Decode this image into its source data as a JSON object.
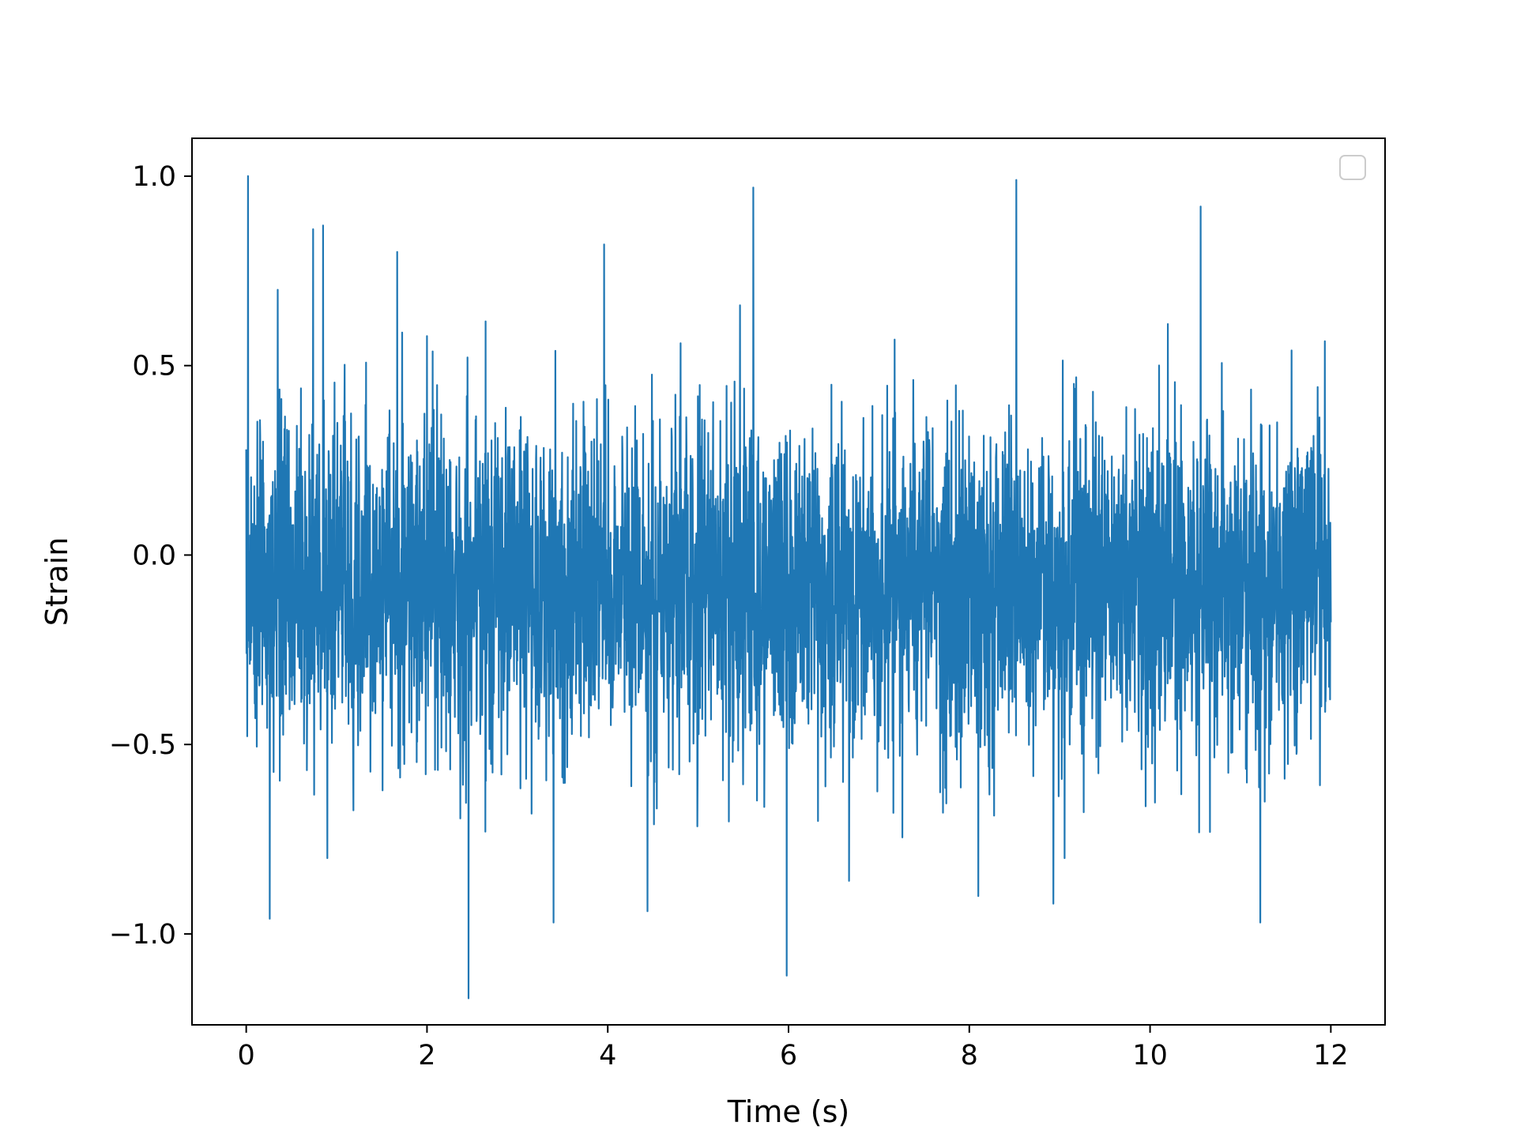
{
  "chart_data": {
    "type": "line",
    "title": "",
    "xlabel": "Time (s)",
    "ylabel": "Strain",
    "xlim": [
      -0.6,
      12.6
    ],
    "ylim": [
      -1.24,
      1.1
    ],
    "x_ticks": [
      0,
      2,
      4,
      6,
      8,
      10,
      12
    ],
    "x_tick_labels": [
      "0",
      "2",
      "4",
      "6",
      "8",
      "10",
      "12"
    ],
    "y_ticks": [
      -1.0,
      -0.5,
      0.0,
      0.5,
      1.0
    ],
    "y_tick_labels": [
      "−1.0",
      "−0.5",
      "0.0",
      "0.5",
      "1.0"
    ],
    "grid": false,
    "legend": {
      "placement": "upper-right",
      "entries": []
    },
    "series": [
      {
        "color": "#1f77b4",
        "x_range": [
          0,
          12
        ],
        "y_range": [
          -1.17,
          1.0
        ],
        "notable_points": [
          {
            "x": 0.02,
            "y": 1.0
          },
          {
            "x": 0.26,
            "y": -0.96
          },
          {
            "x": 0.74,
            "y": 0.86
          },
          {
            "x": 0.85,
            "y": 0.87
          },
          {
            "x": 1.67,
            "y": 0.8
          },
          {
            "x": 2.46,
            "y": -1.17
          },
          {
            "x": 3.4,
            "y": -0.97
          },
          {
            "x": 3.96,
            "y": 0.82
          },
          {
            "x": 4.44,
            "y": -0.94
          },
          {
            "x": 5.61,
            "y": 0.97
          },
          {
            "x": 5.98,
            "y": -1.11
          },
          {
            "x": 6.67,
            "y": -0.86
          },
          {
            "x": 8.1,
            "y": -0.9
          },
          {
            "x": 8.52,
            "y": 0.99
          },
          {
            "x": 8.93,
            "y": -0.92
          },
          {
            "x": 10.56,
            "y": 0.92
          },
          {
            "x": 11.22,
            "y": -0.97
          }
        ]
      }
    ]
  }
}
